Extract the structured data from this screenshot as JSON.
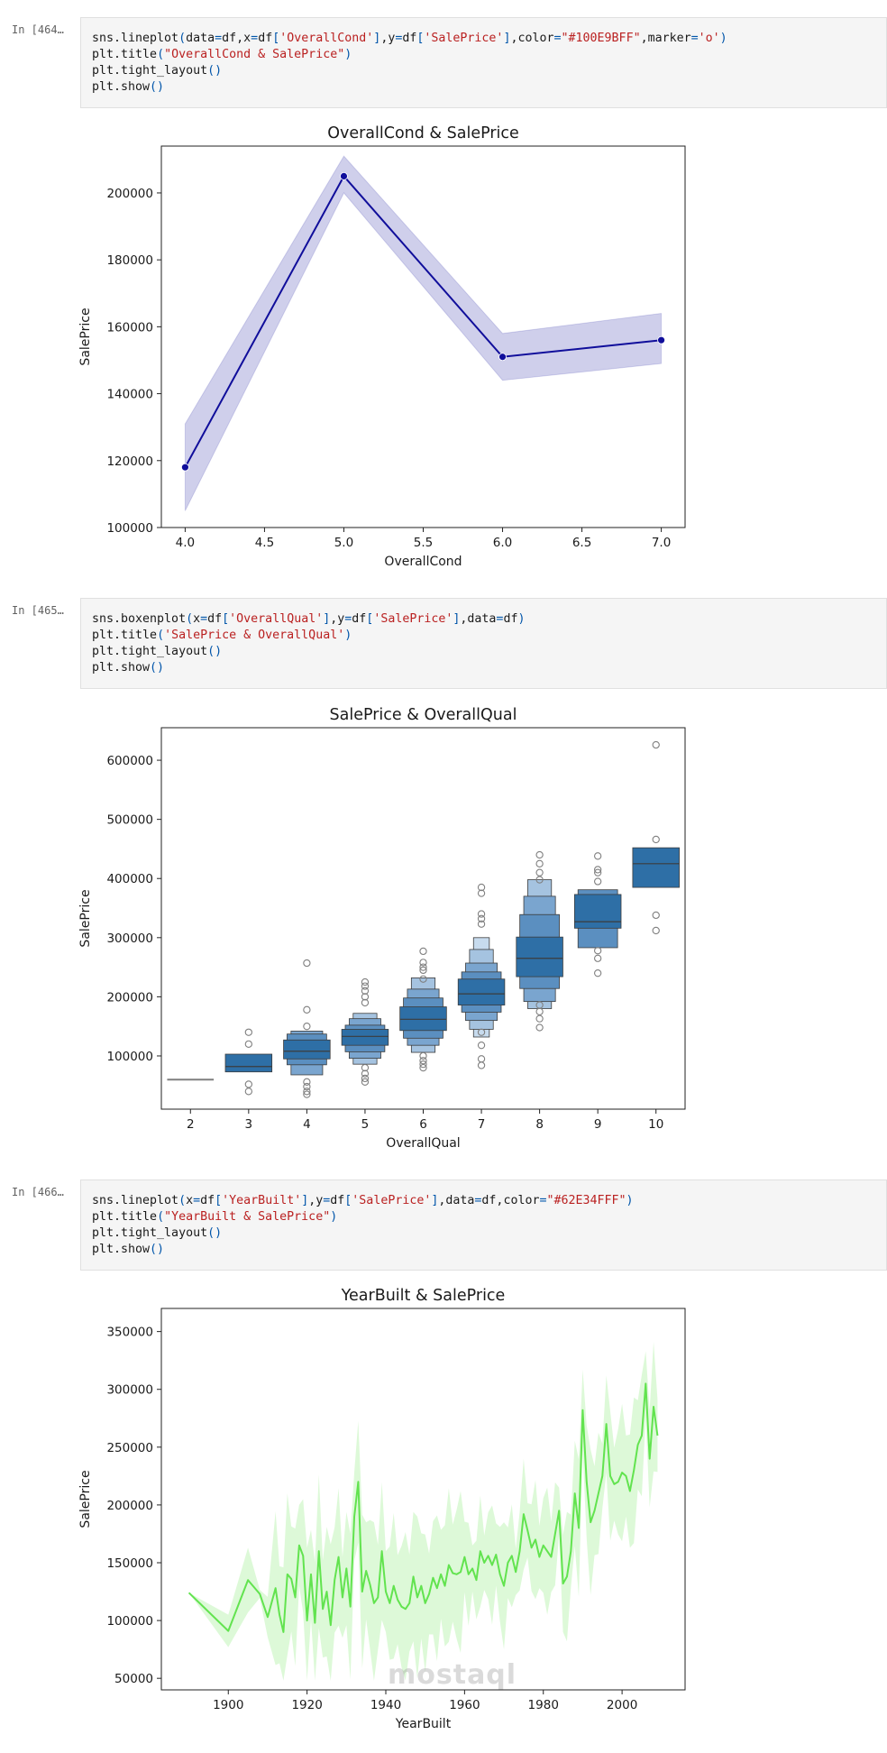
{
  "cells": [
    {
      "prompt": "In [464…",
      "code": [
        [
          [
            "pl",
            "sns.lineplot"
          ],
          [
            "op",
            "("
          ],
          [
            "pl",
            "data"
          ],
          [
            "op",
            "="
          ],
          [
            "pl",
            "df,x"
          ],
          [
            "op",
            "="
          ],
          [
            "pl",
            "df"
          ],
          [
            "op",
            "["
          ],
          [
            "str",
            "'OverallCond'"
          ],
          [
            "op",
            "]"
          ],
          [
            "pl",
            ",y"
          ],
          [
            "op",
            "="
          ],
          [
            "pl",
            "df"
          ],
          [
            "op",
            "["
          ],
          [
            "str",
            "'SalePrice'"
          ],
          [
            "op",
            "]"
          ],
          [
            "pl",
            ",color"
          ],
          [
            "op",
            "="
          ],
          [
            "str",
            "\"#100E9BFF\""
          ],
          [
            "pl",
            ",marker"
          ],
          [
            "op",
            "="
          ],
          [
            "str",
            "'o'"
          ],
          [
            "op",
            ")"
          ]
        ],
        [
          [
            "pl",
            "plt.title"
          ],
          [
            "op",
            "("
          ],
          [
            "str",
            "\"OverallCond & SalePrice\""
          ],
          [
            "op",
            ")"
          ]
        ],
        [
          [
            "pl",
            "plt.tight_layout"
          ],
          [
            "op",
            "()"
          ]
        ],
        [
          [
            "pl",
            "plt.show"
          ],
          [
            "op",
            "()"
          ]
        ]
      ]
    },
    {
      "prompt": "In [465…",
      "code": [
        [
          [
            "pl",
            "sns.boxenplot"
          ],
          [
            "op",
            "("
          ],
          [
            "pl",
            "x"
          ],
          [
            "op",
            "="
          ],
          [
            "pl",
            "df"
          ],
          [
            "op",
            "["
          ],
          [
            "str",
            "'OverallQual'"
          ],
          [
            "op",
            "]"
          ],
          [
            "pl",
            ",y"
          ],
          [
            "op",
            "="
          ],
          [
            "pl",
            "df"
          ],
          [
            "op",
            "["
          ],
          [
            "str",
            "'SalePrice'"
          ],
          [
            "op",
            "]"
          ],
          [
            "pl",
            ",data"
          ],
          [
            "op",
            "="
          ],
          [
            "pl",
            "df"
          ],
          [
            "op",
            ")"
          ]
        ],
        [
          [
            "pl",
            "plt.title"
          ],
          [
            "op",
            "("
          ],
          [
            "str",
            "'SalePrice & OverallQual'"
          ],
          [
            "op",
            ")"
          ]
        ],
        [
          [
            "pl",
            "plt.tight_layout"
          ],
          [
            "op",
            "()"
          ]
        ],
        [
          [
            "pl",
            "plt.show"
          ],
          [
            "op",
            "()"
          ]
        ]
      ]
    },
    {
      "prompt": "In [466…",
      "code": [
        [
          [
            "pl",
            "sns.lineplot"
          ],
          [
            "op",
            "("
          ],
          [
            "pl",
            "x"
          ],
          [
            "op",
            "="
          ],
          [
            "pl",
            "df"
          ],
          [
            "op",
            "["
          ],
          [
            "str",
            "'YearBuilt'"
          ],
          [
            "op",
            "]"
          ],
          [
            "pl",
            ",y"
          ],
          [
            "op",
            "="
          ],
          [
            "pl",
            "df"
          ],
          [
            "op",
            "["
          ],
          [
            "str",
            "'SalePrice'"
          ],
          [
            "op",
            "]"
          ],
          [
            "pl",
            ",data"
          ],
          [
            "op",
            "="
          ],
          [
            "pl",
            "df,color"
          ],
          [
            "op",
            "="
          ],
          [
            "str",
            "\"#62E34FFF\""
          ],
          [
            "op",
            ")"
          ]
        ],
        [
          [
            "pl",
            "plt.title"
          ],
          [
            "op",
            "("
          ],
          [
            "str",
            "\"YearBuilt & SalePrice\""
          ],
          [
            "op",
            ")"
          ]
        ],
        [
          [
            "pl",
            "plt.tight_layout"
          ],
          [
            "op",
            "()"
          ]
        ],
        [
          [
            "pl",
            "plt.show"
          ],
          [
            "op",
            "()"
          ]
        ]
      ]
    }
  ],
  "chart_data": [
    {
      "type": "line",
      "title": "OverallCond & SalePrice",
      "xlabel": "OverallCond",
      "ylabel": "SalePrice",
      "color": "#100E9B",
      "x": [
        4.0,
        5.0,
        6.0,
        7.0
      ],
      "y": [
        118000,
        205000,
        151000,
        156000
      ],
      "ci_low": [
        105000,
        200000,
        144000,
        149000
      ],
      "ci_high": [
        131000,
        211000,
        158000,
        164000
      ],
      "xlim": [
        3.85,
        7.15
      ],
      "ylim": [
        100000,
        214000
      ],
      "xticks": [
        4.0,
        4.5,
        5.0,
        5.5,
        6.0,
        6.5,
        7.0
      ],
      "xticklabels": [
        "4.0",
        "4.5",
        "5.0",
        "5.5",
        "6.0",
        "6.5",
        "7.0"
      ],
      "yticks": [
        100000,
        120000,
        140000,
        160000,
        180000,
        200000
      ],
      "grid": false
    },
    {
      "type": "boxen",
      "title": "SalePrice & OverallQual",
      "xlabel": "OverallQual",
      "ylabel": "SalePrice",
      "color": "#2E6FA6",
      "categories": [
        "2",
        "3",
        "4",
        "5",
        "6",
        "7",
        "8",
        "9",
        "10"
      ],
      "ylim": [
        10000,
        655000
      ],
      "yticks": [
        100000,
        200000,
        300000,
        400000,
        500000,
        600000
      ],
      "median": [
        60000,
        82000,
        108000,
        133000,
        162000,
        205000,
        265000,
        327000,
        425000
      ],
      "q1": [
        60000,
        73000,
        95000,
        118000,
        143000,
        186000,
        234000,
        316000,
        385000
      ],
      "q3": [
        60000,
        103000,
        127000,
        145000,
        183000,
        230000,
        301000,
        373000,
        452000
      ],
      "outer": [
        [],
        [],
        [
          [
            85000,
            137000
          ],
          [
            68000,
            142000
          ]
        ],
        [
          [
            107000,
            152000
          ],
          [
            96000,
            163000
          ],
          [
            86000,
            172000
          ]
        ],
        [
          [
            130000,
            198000
          ],
          [
            118000,
            213000
          ],
          [
            106000,
            232000
          ]
        ],
        [
          [
            174000,
            242000
          ],
          [
            160000,
            257000
          ],
          [
            145000,
            280000
          ],
          [
            132000,
            300000
          ]
        ],
        [
          [
            214000,
            339000
          ],
          [
            192000,
            370000
          ],
          [
            180000,
            398000
          ]
        ],
        [
          [
            283000,
            381000
          ]
        ],
        []
      ],
      "fliers": [
        [],
        [
          140000,
          120000,
          52000,
          40000
        ],
        [
          257000,
          178000,
          150000,
          56000,
          48000,
          40000,
          35000
        ],
        [
          225000,
          218000,
          210000,
          200000,
          190000,
          80000,
          70000,
          62000,
          56000
        ],
        [
          277000,
          258000,
          250000,
          245000,
          230000,
          100000,
          92000,
          86000,
          80000
        ],
        [
          385000,
          375000,
          340000,
          332000,
          323000,
          140000,
          118000,
          95000,
          84000
        ],
        [
          440000,
          425000,
          410000,
          398000,
          186000,
          175000,
          163000,
          148000
        ],
        [
          438000,
          415000,
          410000,
          395000,
          278000,
          265000,
          240000
        ],
        [
          626000,
          466000,
          338000,
          312000
        ]
      ],
      "grid": false
    },
    {
      "type": "line",
      "title": "YearBuilt & SalePrice",
      "xlabel": "YearBuilt",
      "ylabel": "SalePrice",
      "color": "#62E34F",
      "x": [
        1890,
        1900,
        1905,
        1908,
        1910,
        1912,
        1913,
        1914,
        1915,
        1916,
        1917,
        1918,
        1919,
        1920,
        1921,
        1922,
        1923,
        1924,
        1925,
        1926,
        1927,
        1928,
        1929,
        1930,
        1931,
        1932,
        1933,
        1934,
        1935,
        1936,
        1937,
        1938,
        1939,
        1940,
        1941,
        1942,
        1943,
        1944,
        1945,
        1946,
        1947,
        1948,
        1949,
        1950,
        1951,
        1952,
        1953,
        1954,
        1955,
        1956,
        1957,
        1958,
        1959,
        1960,
        1961,
        1962,
        1963,
        1964,
        1965,
        1966,
        1967,
        1968,
        1969,
        1970,
        1971,
        1972,
        1973,
        1974,
        1975,
        1976,
        1977,
        1978,
        1979,
        1980,
        1981,
        1982,
        1983,
        1984,
        1985,
        1986,
        1987,
        1988,
        1989,
        1990,
        1991,
        1992,
        1993,
        1994,
        1995,
        1996,
        1997,
        1998,
        1999,
        2000,
        2001,
        2002,
        2003,
        2004,
        2005,
        2006,
        2007,
        2008,
        2009
      ],
      "y": [
        124000,
        91000,
        135000,
        123000,
        103000,
        128000,
        105000,
        90000,
        140000,
        136000,
        120000,
        165000,
        156000,
        100000,
        140000,
        98000,
        160000,
        110000,
        125000,
        96000,
        135000,
        155000,
        120000,
        145000,
        112000,
        190000,
        220000,
        125000,
        143000,
        131000,
        115000,
        120000,
        160000,
        125000,
        115000,
        130000,
        118000,
        112000,
        110000,
        115000,
        138000,
        120000,
        130000,
        115000,
        123000,
        137000,
        128000,
        140000,
        130000,
        148000,
        141000,
        140000,
        142000,
        155000,
        140000,
        145000,
        135000,
        160000,
        150000,
        156000,
        148000,
        157000,
        140000,
        130000,
        150000,
        156000,
        142000,
        160000,
        192000,
        178000,
        163000,
        170000,
        155000,
        165000,
        160000,
        155000,
        175000,
        195000,
        132000,
        138000,
        160000,
        210000,
        180000,
        282000,
        220000,
        185000,
        195000,
        210000,
        225000,
        270000,
        225000,
        218000,
        220000,
        228000,
        225000,
        212000,
        230000,
        252000,
        260000,
        305000,
        240000,
        285000,
        260000
      ],
      "xlim": [
        1883,
        2016
      ],
      "ylim": [
        40000,
        370000
      ],
      "xticks": [
        1900,
        1920,
        1940,
        1960,
        1980,
        2000
      ],
      "yticks": [
        50000,
        100000,
        150000,
        200000,
        250000,
        300000,
        350000
      ],
      "grid": false
    }
  ]
}
